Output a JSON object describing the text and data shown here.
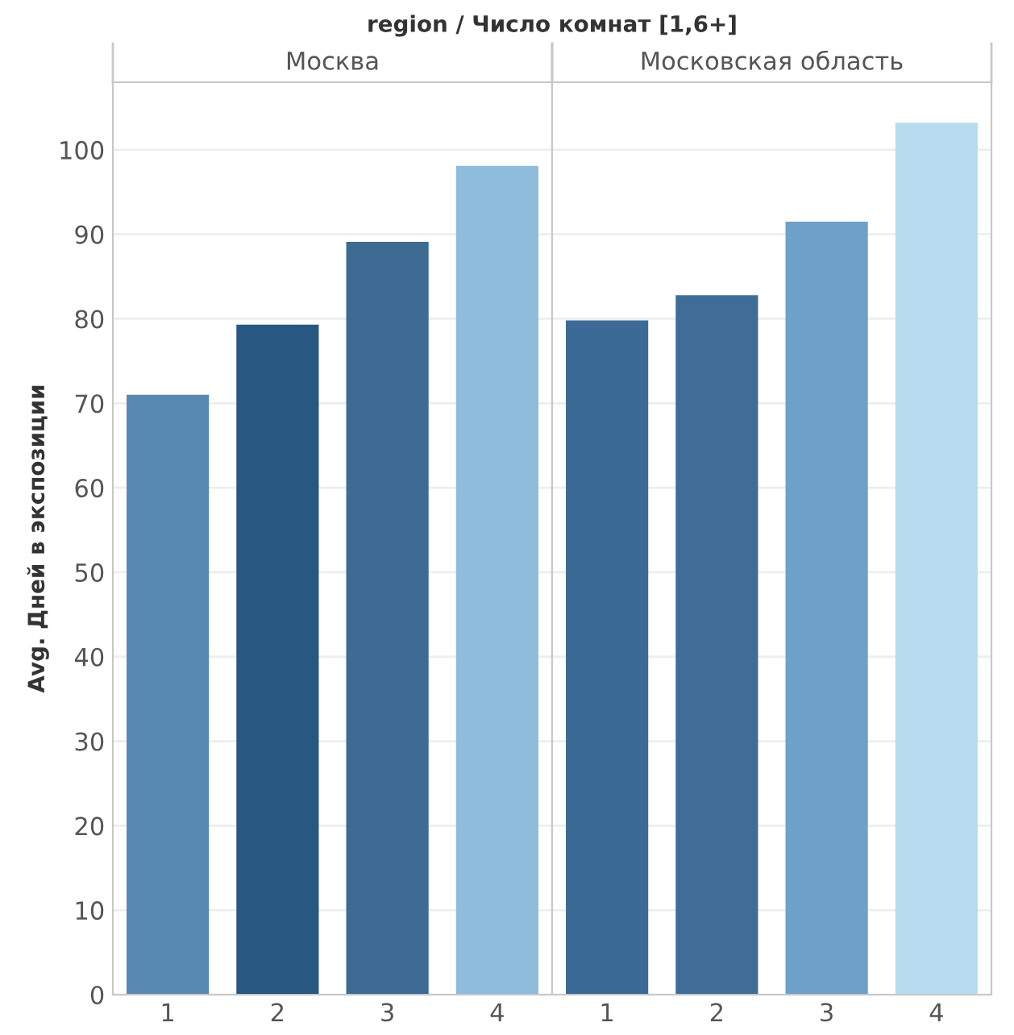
{
  "chart_data": [
    {
      "type": "bar",
      "title": "region / Число комнат [1,6+]",
      "subtitle": "Москва",
      "ylabel": "Avg. Дней в экспозиции",
      "categories": [
        "1",
        "2",
        "3",
        "4"
      ],
      "values": [
        71.0,
        79.3,
        89.1,
        98.1
      ],
      "colors": [
        "#5889b3",
        "#285782",
        "#3d6b94",
        "#8fbcdc"
      ],
      "ylim": [
        0,
        108
      ],
      "yticks": [
        0,
        10,
        20,
        30,
        40,
        50,
        60,
        70,
        80,
        90,
        100
      ],
      "grid": "y"
    },
    {
      "type": "bar",
      "subtitle": "Московская область",
      "categories": [
        "1",
        "2",
        "3",
        "4"
      ],
      "values": [
        79.8,
        82.8,
        91.5,
        103.2
      ],
      "colors": [
        "#3b6a96",
        "#3f6d98",
        "#6ea1c8",
        "#b8dcef"
      ],
      "ylim": [
        0,
        108
      ],
      "yticks": [
        0,
        10,
        20,
        30,
        40,
        50,
        60,
        70,
        80,
        90,
        100
      ],
      "grid": "y",
      "tick_labels": "x"
    }
  ]
}
